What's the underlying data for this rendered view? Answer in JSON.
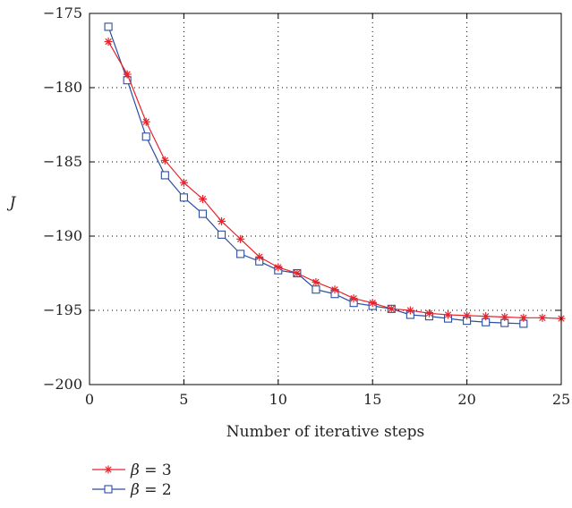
{
  "chart_data": {
    "type": "line",
    "title": "",
    "xlabel": "Number of iterative steps",
    "ylabel": "J",
    "xlim": [
      0,
      25
    ],
    "ylim": [
      -200,
      -175
    ],
    "xticks": [
      "0",
      "5",
      "10",
      "15",
      "20",
      "25"
    ],
    "yticks": [
      "−175",
      "−180",
      "−185",
      "−190",
      "−195",
      "−200"
    ],
    "grid": true,
    "legend_position": "below",
    "series": [
      {
        "name": "β = 3",
        "label_symbol": "β",
        "label_value": "= 3",
        "color": "#e8222a",
        "marker": "star",
        "x": [
          1,
          2,
          3,
          4,
          5,
          6,
          7,
          8,
          9,
          10,
          11,
          12,
          13,
          14,
          15,
          16,
          17,
          18,
          19,
          20,
          21,
          22,
          23,
          24,
          25
        ],
        "y": [
          -176.9,
          -179.1,
          -182.3,
          -184.9,
          -186.4,
          -187.5,
          -189.0,
          -190.2,
          -191.4,
          -192.1,
          -192.5,
          -193.1,
          -193.6,
          -194.2,
          -194.5,
          -194.9,
          -195.0,
          -195.2,
          -195.3,
          -195.35,
          -195.4,
          -195.45,
          -195.5,
          -195.5,
          -195.55
        ]
      },
      {
        "name": "β = 2",
        "label_symbol": "β",
        "label_value": "= 2",
        "color": "#2a4ea0",
        "marker": "square",
        "x": [
          1,
          2,
          3,
          4,
          5,
          6,
          7,
          8,
          9,
          10,
          11,
          12,
          13,
          14,
          15,
          16,
          17,
          18,
          19,
          20,
          21,
          22,
          23
        ],
        "y": [
          -175.9,
          -179.5,
          -183.3,
          -185.9,
          -187.4,
          -188.5,
          -189.9,
          -191.2,
          -191.7,
          -192.3,
          -192.5,
          -193.6,
          -193.9,
          -194.5,
          -194.7,
          -194.9,
          -195.3,
          -195.4,
          -195.55,
          -195.7,
          -195.8,
          -195.85,
          -195.9
        ]
      }
    ]
  }
}
